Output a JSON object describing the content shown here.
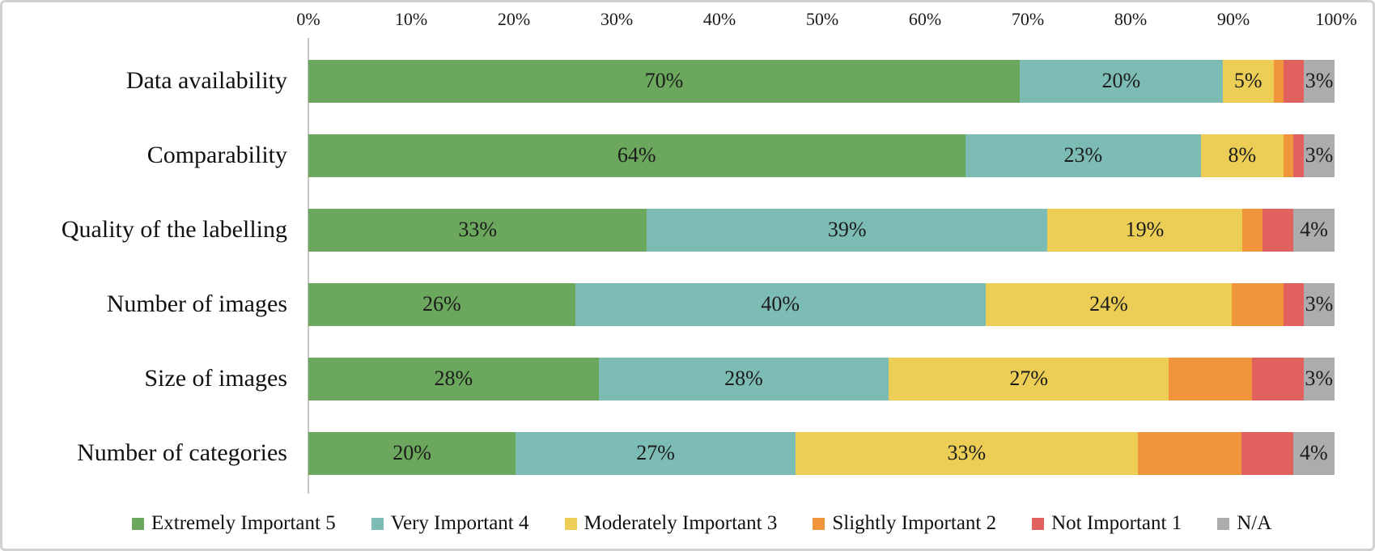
{
  "chart_data": {
    "type": "bar",
    "stacked": true,
    "orientation": "horizontal",
    "percent_axis": true,
    "title": "",
    "xlabel": "",
    "ylabel": "",
    "axis": {
      "min": 0,
      "max": 100,
      "tick_step": 10,
      "tick_labels": [
        "0%",
        "10%",
        "20%",
        "30%",
        "40%",
        "50%",
        "60%",
        "70%",
        "80%",
        "90%",
        "100%"
      ],
      "position": "top"
    },
    "categories": [
      "Data availability",
      "Comparability",
      "Quality of the labelling",
      "Number of images",
      "Size of images",
      "Number of categories"
    ],
    "series": [
      {
        "name": "Extremely Important 5",
        "color": "#6ba75c",
        "show_data_labels": true,
        "values": [
          70,
          64,
          33,
          26,
          28,
          20
        ]
      },
      {
        "name": "Very Important 4",
        "color": "#7dbcb5",
        "show_data_labels": true,
        "values": [
          20,
          23,
          39,
          40,
          28,
          27
        ]
      },
      {
        "name": "Moderately Important 3",
        "color": "#ecce56",
        "show_data_labels": true,
        "values": [
          5,
          8,
          19,
          24,
          27,
          33
        ]
      },
      {
        "name": "Slightly Important 2",
        "color": "#f0953c",
        "show_data_labels": false,
        "values": [
          1,
          1,
          2,
          5,
          8,
          10
        ]
      },
      {
        "name": "Not Important 1",
        "color": "#e0615e",
        "show_data_labels": false,
        "values": [
          2,
          1,
          3,
          2,
          5,
          5
        ]
      },
      {
        "name": "N/A",
        "color": "#acacac",
        "show_data_labels": true,
        "values": [
          3,
          3,
          4,
          3,
          3,
          4
        ]
      }
    ],
    "data_label_suffix": "%",
    "legend_position": "bottom",
    "grid": false
  },
  "legend": {
    "items": [
      {
        "label": "Extremely Important 5",
        "color": "#6ba75c"
      },
      {
        "label": "Very Important 4",
        "color": "#7dbcb5"
      },
      {
        "label": "Moderately Important 3",
        "color": "#ecce56"
      },
      {
        "label": "Slightly Important 2",
        "color": "#f0953c"
      },
      {
        "label": "Not Important 1",
        "color": "#e0615e"
      },
      {
        "label": "N/A",
        "color": "#acacac"
      }
    ]
  },
  "style": {
    "axis_line_color": "#c6c6c6",
    "frame_border_color": "#d2d2d2",
    "text_color": "#111111"
  }
}
